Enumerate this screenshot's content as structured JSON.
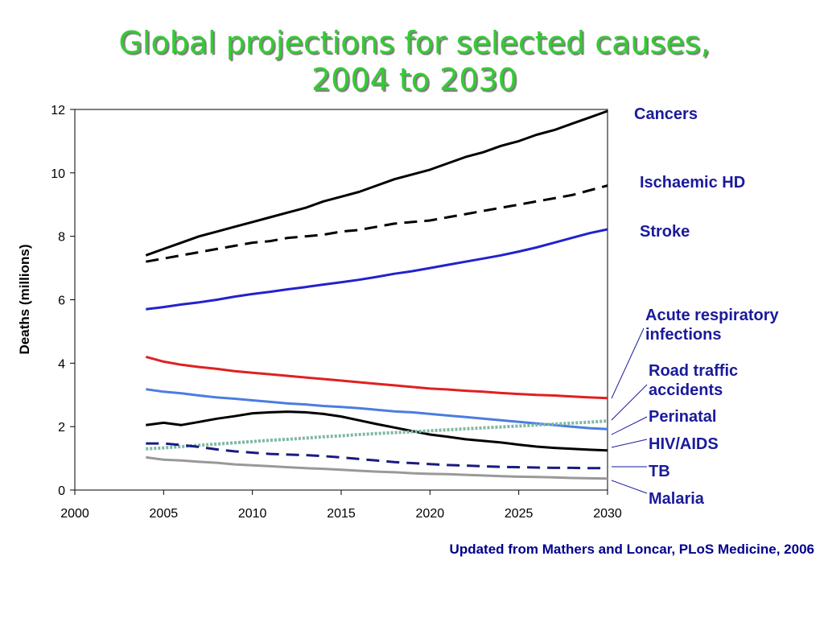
{
  "slide": {
    "title_line1": "Global projections for selected causes,",
    "title_line2": "2004 to 2030",
    "source": "Updated from Mathers and Loncar, PLoS Medicine, 2006"
  },
  "colors": {
    "title": "#33cc33",
    "label_text": "#1a1a9c",
    "source_text": "#00008b"
  },
  "chart_data": {
    "type": "line",
    "title": "Global projections for selected causes, 2004 to 2030",
    "xlabel": "",
    "ylabel": "Deaths (millions)",
    "xlim": [
      2000,
      2030
    ],
    "ylim": [
      0,
      12
    ],
    "xticks": [
      2000,
      2005,
      2010,
      2015,
      2020,
      2025,
      2030
    ],
    "yticks": [
      0,
      2,
      4,
      6,
      8,
      10,
      12
    ],
    "grid": false,
    "legend": "right-side labels with leader lines",
    "x": [
      2004,
      2005,
      2006,
      2007,
      2008,
      2009,
      2010,
      2011,
      2012,
      2013,
      2014,
      2015,
      2016,
      2017,
      2018,
      2019,
      2020,
      2021,
      2022,
      2023,
      2024,
      2025,
      2026,
      2027,
      2028,
      2029,
      2030
    ],
    "series": [
      {
        "name": "Cancers",
        "color": "#000000",
        "dash": "solid",
        "values": [
          7.4,
          7.6,
          7.8,
          8.0,
          8.15,
          8.3,
          8.45,
          8.6,
          8.75,
          8.9,
          9.1,
          9.25,
          9.4,
          9.6,
          9.8,
          9.95,
          10.1,
          10.3,
          10.5,
          10.65,
          10.85,
          11.0,
          11.2,
          11.35,
          11.55,
          11.75,
          11.95
        ]
      },
      {
        "name": "Ischaemic HD",
        "color": "#000000",
        "dash": "dashed",
        "values": [
          7.2,
          7.3,
          7.4,
          7.5,
          7.6,
          7.7,
          7.8,
          7.85,
          7.95,
          8.0,
          8.05,
          8.15,
          8.2,
          8.3,
          8.4,
          8.45,
          8.5,
          8.6,
          8.7,
          8.8,
          8.9,
          9.0,
          9.1,
          9.2,
          9.3,
          9.45,
          9.6
        ]
      },
      {
        "name": "Stroke",
        "color": "#2222cc",
        "dash": "solid",
        "values": [
          5.7,
          5.77,
          5.85,
          5.92,
          6.0,
          6.1,
          6.18,
          6.25,
          6.33,
          6.4,
          6.48,
          6.55,
          6.63,
          6.72,
          6.82,
          6.9,
          7.0,
          7.1,
          7.2,
          7.3,
          7.4,
          7.52,
          7.65,
          7.8,
          7.95,
          8.1,
          8.22
        ]
      },
      {
        "name": "Acute respiratory infections",
        "color": "#e02020",
        "dash": "solid",
        "values": [
          4.2,
          4.05,
          3.95,
          3.88,
          3.82,
          3.75,
          3.7,
          3.65,
          3.6,
          3.55,
          3.5,
          3.45,
          3.4,
          3.35,
          3.3,
          3.25,
          3.2,
          3.17,
          3.13,
          3.1,
          3.06,
          3.03,
          3.0,
          2.98,
          2.95,
          2.92,
          2.9
        ]
      },
      {
        "name": "Road traffic accidents",
        "color": "#4a7de0",
        "dash": "solid",
        "values": [
          3.18,
          3.1,
          3.05,
          2.98,
          2.92,
          2.88,
          2.83,
          2.78,
          2.73,
          2.7,
          2.65,
          2.62,
          2.58,
          2.53,
          2.48,
          2.45,
          2.4,
          2.35,
          2.3,
          2.25,
          2.2,
          2.15,
          2.1,
          2.05,
          2.0,
          1.95,
          1.92
        ]
      },
      {
        "name": "Perinatal",
        "color": "#000000",
        "dash": "solid",
        "values": [
          2.05,
          2.12,
          2.05,
          2.15,
          2.25,
          2.33,
          2.42,
          2.45,
          2.47,
          2.45,
          2.4,
          2.32,
          2.2,
          2.08,
          1.97,
          1.86,
          1.75,
          1.68,
          1.6,
          1.55,
          1.5,
          1.43,
          1.37,
          1.33,
          1.3,
          1.27,
          1.25
        ]
      },
      {
        "name": "HIV/AIDS",
        "color": "#7fb8a4",
        "dash": "dotted",
        "values": [
          1.3,
          1.33,
          1.37,
          1.41,
          1.45,
          1.49,
          1.53,
          1.57,
          1.6,
          1.64,
          1.68,
          1.71,
          1.75,
          1.78,
          1.81,
          1.84,
          1.87,
          1.9,
          1.93,
          1.96,
          1.99,
          2.02,
          2.05,
          2.08,
          2.11,
          2.14,
          2.18
        ]
      },
      {
        "name": "TB",
        "color": "#1a1a80",
        "dash": "dashed",
        "values": [
          1.47,
          1.47,
          1.42,
          1.36,
          1.28,
          1.22,
          1.18,
          1.14,
          1.12,
          1.1,
          1.07,
          1.03,
          0.98,
          0.93,
          0.88,
          0.85,
          0.82,
          0.79,
          0.77,
          0.75,
          0.73,
          0.72,
          0.71,
          0.7,
          0.7,
          0.69,
          0.69
        ]
      },
      {
        "name": "Malaria",
        "color": "#999999",
        "dash": "solid",
        "values": [
          1.03,
          0.96,
          0.93,
          0.89,
          0.86,
          0.81,
          0.78,
          0.75,
          0.72,
          0.69,
          0.67,
          0.64,
          0.61,
          0.58,
          0.56,
          0.53,
          0.51,
          0.5,
          0.48,
          0.46,
          0.44,
          0.42,
          0.41,
          0.4,
          0.38,
          0.37,
          0.36
        ]
      }
    ]
  }
}
